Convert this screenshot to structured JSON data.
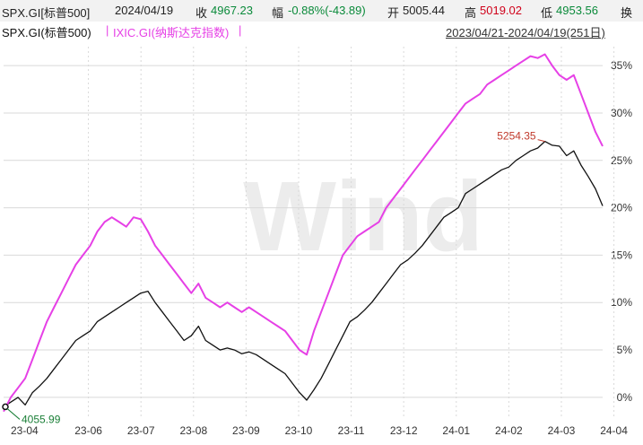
{
  "quote": {
    "symbol": "SPX.GI[标普500]",
    "date": "2024/04/19",
    "close_label": "收",
    "close_value": "4967.23",
    "change_label": "幅",
    "change_value": "-0.88%(-43.89)",
    "open_label": "开",
    "open_value": "5005.44",
    "high_label": "高",
    "high_value": "5019.02",
    "low_label": "低",
    "low_value": "4953.56",
    "turnover_label": "换"
  },
  "legend": {
    "series1": "SPX.GI(标普500)",
    "sep": "|",
    "series2": "IXIC.GI(纳斯达克指数)",
    "sep2": "|",
    "range": "2023/04/21-2024/04/19(251日)"
  },
  "colors": {
    "spx": "#111111",
    "ixic": "#e640e6",
    "grid": "#d9d9d9",
    "axis_text": "#333333",
    "high_label": "#c0392b",
    "low_label": "#1a7f37",
    "watermark": "#ececec"
  },
  "chart_data": {
    "type": "line",
    "x_tick_labels": [
      "23-04",
      "23-06",
      "23-07",
      "23-08",
      "23-09",
      "23-10",
      "23-11",
      "23-12",
      "24-01",
      "24-02",
      "24-03",
      "24-04"
    ],
    "y_tick_labels": [
      "0%",
      "5%",
      "10%",
      "15%",
      "20%",
      "25%",
      "30%",
      "35%"
    ],
    "ylim": [
      -2,
      37
    ],
    "series": [
      {
        "name": "SPX.GI(标普500)",
        "color": "#111111",
        "values": [
          -1,
          -0.5,
          0,
          -0.8,
          0.5,
          1.2,
          2,
          3,
          4,
          5,
          6,
          6.5,
          7,
          8,
          8.5,
          9,
          9.5,
          10,
          10.5,
          11,
          11.2,
          10,
          9,
          8,
          7,
          6,
          6.5,
          7.5,
          6,
          5.5,
          5,
          5.2,
          5,
          4.6,
          4.8,
          4.5,
          4,
          3.5,
          3,
          2.5,
          1.5,
          0.5,
          -0.3,
          0.8,
          2,
          3.5,
          5,
          6.5,
          8,
          8.5,
          9.2,
          10,
          11,
          12,
          13,
          14,
          14.5,
          15.2,
          16,
          17,
          18,
          19,
          19.5,
          20,
          21.5,
          22,
          22.5,
          23,
          23.5,
          24,
          24.3,
          25,
          25.5,
          26,
          26.3,
          27,
          26.6,
          26.5,
          25.5,
          26,
          24.5,
          23.3,
          22,
          20.2
        ]
      },
      {
        "name": "IXIC.GI(纳斯达克指数)",
        "color": "#e640e6",
        "values": [
          -1.5,
          0,
          1,
          2,
          4,
          6,
          8,
          9.5,
          11,
          12.5,
          14,
          15,
          16,
          17.5,
          18.5,
          19,
          18.5,
          18,
          19,
          18.8,
          17.5,
          16,
          15,
          14,
          13,
          12,
          11,
          12,
          10.5,
          10,
          9.5,
          10,
          9.5,
          9,
          9.5,
          9,
          8.5,
          8,
          7.5,
          7,
          6,
          5,
          4.5,
          7,
          9,
          11,
          13,
          15,
          16,
          17,
          17.5,
          18,
          18.5,
          20,
          21,
          22,
          23,
          24,
          25,
          26,
          27,
          28,
          29,
          30,
          31,
          31.5,
          32,
          33,
          33.5,
          34,
          34.5,
          35,
          35.5,
          36,
          35.8,
          36.2,
          35,
          34,
          33.5,
          34,
          32,
          30,
          28,
          26.5
        ]
      }
    ],
    "annotations": [
      {
        "text": "5254.35",
        "series": 0,
        "x_index": 75
      },
      {
        "text": "4055.99",
        "series": 0,
        "x_index": 0
      }
    ],
    "watermark": "Wind",
    "grid": true
  }
}
